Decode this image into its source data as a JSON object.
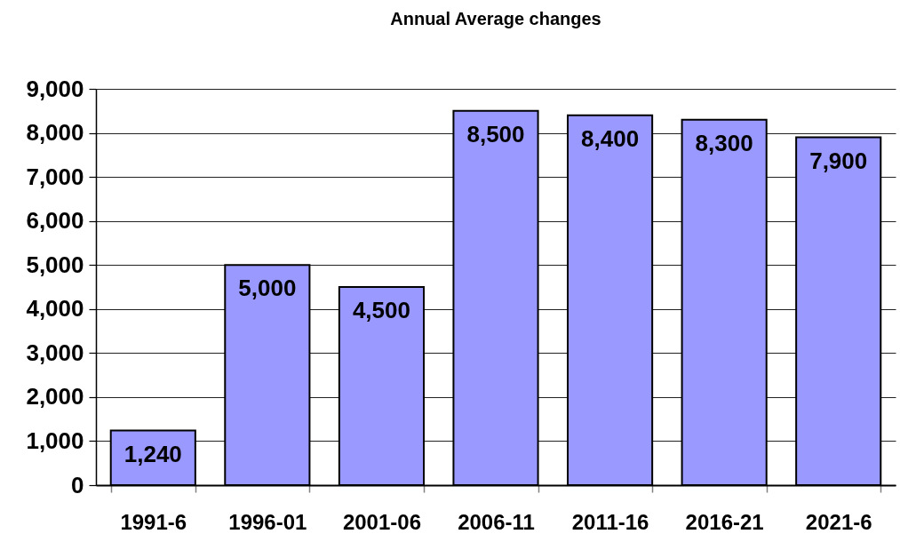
{
  "chart_data": {
    "type": "bar",
    "title": "Annual Average changes",
    "categories": [
      "1991-6",
      "1996-01",
      "2001-06",
      "2006-11",
      "2011-16",
      "2016-21",
      "2021-6"
    ],
    "values": [
      1240,
      5000,
      4500,
      8500,
      8400,
      8300,
      7900
    ],
    "value_labels": [
      "1,240",
      "5,000",
      "4,500",
      "8,500",
      "8,400",
      "8,300",
      "7,900"
    ],
    "color": "#9999ff",
    "ylim": [
      0,
      9000
    ],
    "yticks": [
      0,
      {
        "value": 1000,
        "label": "1,000"
      },
      {
        "value": 2000,
        "label": "2,000"
      },
      {
        "value": 3000,
        "label": "3,000"
      },
      {
        "value": 4000,
        "label": "4,000"
      },
      {
        "value": 5000,
        "label": "5,000"
      },
      {
        "value": 6000,
        "label": "6,000"
      },
      {
        "value": 7000,
        "label": "7,000"
      },
      {
        "value": 8000,
        "label": "8,000"
      },
      {
        "value": 9000,
        "label": "9,000"
      }
    ],
    "grid": "y"
  }
}
